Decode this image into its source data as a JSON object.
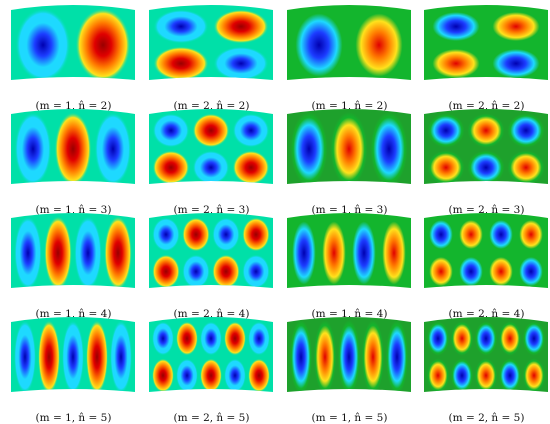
{
  "palette": {
    "background": "#00e0a8",
    "dark_blue": "#0000b0",
    "blue": "#1c3cff",
    "cyan": "#1ed9ff",
    "green_mid": "#13b52d",
    "green_dark": "#1ea12c",
    "yellow": "#ffe21c",
    "orange": "#ff7a00",
    "red": "#e00000",
    "dark_red": "#990000"
  },
  "rows": [
    {
      "cells": [
        {
          "caption": "(m = 1, n̂ = 2)",
          "m": 1,
          "n": 2,
          "style": "experimental"
        },
        {
          "caption": "(m = 2, n̂ = 2)",
          "m": 2,
          "n": 2,
          "style": "experimental"
        },
        {
          "caption": "(m = 1, n̂ = 2)",
          "m": 1,
          "n": 2,
          "style": "numerical"
        },
        {
          "caption": "(m = 2, n̂ = 2)",
          "m": 2,
          "n": 2,
          "style": "numerical"
        }
      ]
    },
    {
      "cells": [
        {
          "caption": "(m = 1, n̂ = 3)",
          "m": 1,
          "n": 3,
          "style": "experimental"
        },
        {
          "caption": "(m = 2, n̂ = 3)",
          "m": 2,
          "n": 3,
          "style": "experimental"
        },
        {
          "caption": "(m = 1, n̂ = 3)",
          "m": 1,
          "n": 3,
          "style": "numerical"
        },
        {
          "caption": "(m = 2, n̂ = 3)",
          "m": 2,
          "n": 3,
          "style": "numerical"
        }
      ]
    },
    {
      "cells": [
        {
          "caption": "(m = 1, n̂ = 4)",
          "m": 1,
          "n": 4,
          "style": "experimental"
        },
        {
          "caption": "(m = 2, n̂ = 4)",
          "m": 2,
          "n": 4,
          "style": "experimental"
        },
        {
          "caption": "(m = 1, n̂ = 4)",
          "m": 1,
          "n": 4,
          "style": "numerical"
        },
        {
          "caption": "(m = 2, n̂ = 4)",
          "m": 2,
          "n": 4,
          "style": "numerical"
        }
      ]
    },
    {
      "cells": [
        {
          "caption": "(m = 1, n̂ = 5)",
          "m": 1,
          "n": 5,
          "style": "experimental"
        },
        {
          "caption": "(m = 2, n̂ = 5)",
          "m": 2,
          "n": 5,
          "style": "experimental"
        },
        {
          "caption": "(m = 1, n̂ = 5)",
          "m": 1,
          "n": 5,
          "style": "numerical"
        },
        {
          "caption": "(m = 2, n̂ = 5)",
          "m": 2,
          "n": 5,
          "style": "numerical"
        }
      ]
    }
  ]
}
